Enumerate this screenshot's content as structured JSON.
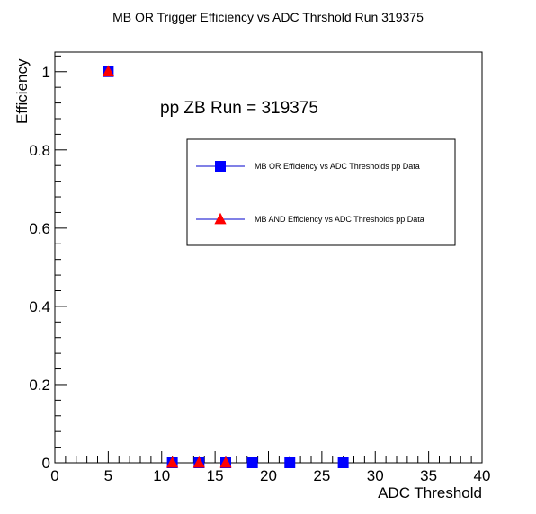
{
  "chart_data": {
    "type": "scatter",
    "title": "MB OR Trigger Efficiency vs ADC Thrshold Run 319375",
    "annotation": "pp ZB Run = 319375",
    "xlabel": "ADC Threshold",
    "ylabel": "Efficiency",
    "xlim": [
      0,
      40
    ],
    "ylim": [
      0,
      1.05
    ],
    "x_ticks": [
      0,
      5,
      10,
      15,
      20,
      25,
      30,
      35,
      40
    ],
    "x_tick_labels": [
      "0",
      "5",
      "10",
      "15",
      "20",
      "25",
      "30",
      "35",
      "40"
    ],
    "y_ticks": [
      0,
      0.2,
      0.4,
      0.6,
      0.8,
      1
    ],
    "y_tick_labels": [
      "0",
      "0.2",
      "0.4",
      "0.6",
      "0.8",
      "1"
    ],
    "grid": false,
    "legend_position": "top-right",
    "series": [
      {
        "name": "MB OR Efficiency vs ADC Thresholds pp Data",
        "marker": "square",
        "color": "#0000ff",
        "points": [
          {
            "x": 5,
            "y": 1.0
          },
          {
            "x": 11,
            "y": 0.0
          },
          {
            "x": 13.5,
            "y": 0.0
          },
          {
            "x": 16,
            "y": 0.0
          },
          {
            "x": 18.5,
            "y": 0.0
          },
          {
            "x": 22,
            "y": 0.0
          },
          {
            "x": 27,
            "y": 0.0
          }
        ]
      },
      {
        "name": "MB AND Efficiency vs ADC Thresholds pp Data",
        "marker": "triangle",
        "color": "#ff0000",
        "points": [
          {
            "x": 5,
            "y": 1.0
          },
          {
            "x": 11,
            "y": 0.0
          },
          {
            "x": 13.5,
            "y": 0.0
          },
          {
            "x": 16,
            "y": 0.0
          }
        ]
      }
    ]
  }
}
